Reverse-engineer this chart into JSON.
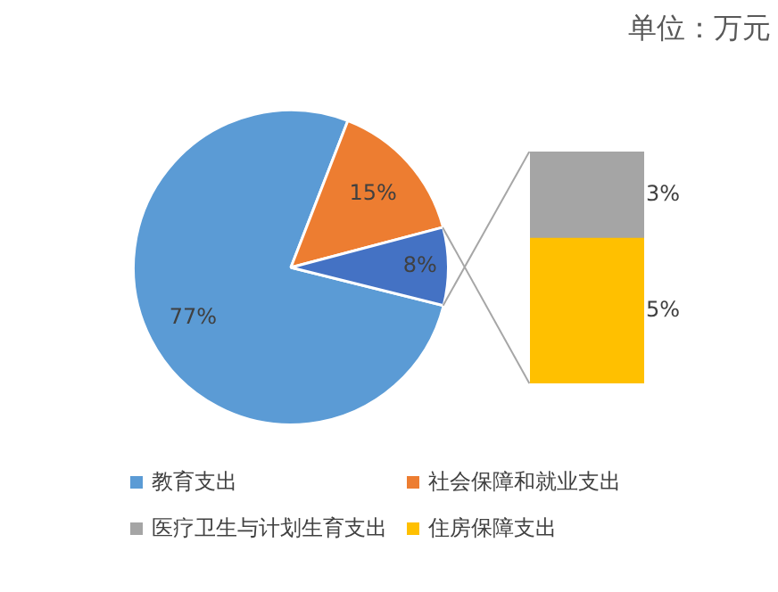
{
  "chart_data": [
    {
      "type": "pie",
      "title": "单位：万元",
      "categories": [
        "教育支出",
        "社会保障和就业支出",
        null
      ],
      "values": [
        77,
        15,
        8
      ],
      "colors": [
        "#5b9bd5",
        "#ed7d31",
        "#4472c4"
      ],
      "value_labels": [
        "77%",
        "15%",
        "8%"
      ],
      "legend": "bottom"
    },
    {
      "type": "bar",
      "stacked": true,
      "categories": [
        null
      ],
      "series": [
        {
          "name": "住房保障支出",
          "color": "#ffc000",
          "values": [
            5
          ],
          "value_labels": [
            "5%"
          ]
        },
        {
          "name": "医疗卫生与计划生育支出",
          "color": "#a5a5a5",
          "values": [
            3
          ],
          "value_labels": [
            "3%"
          ]
        }
      ],
      "ylim": [
        0,
        8
      ],
      "tick_labels": false,
      "legend": "bottom"
    }
  ]
}
